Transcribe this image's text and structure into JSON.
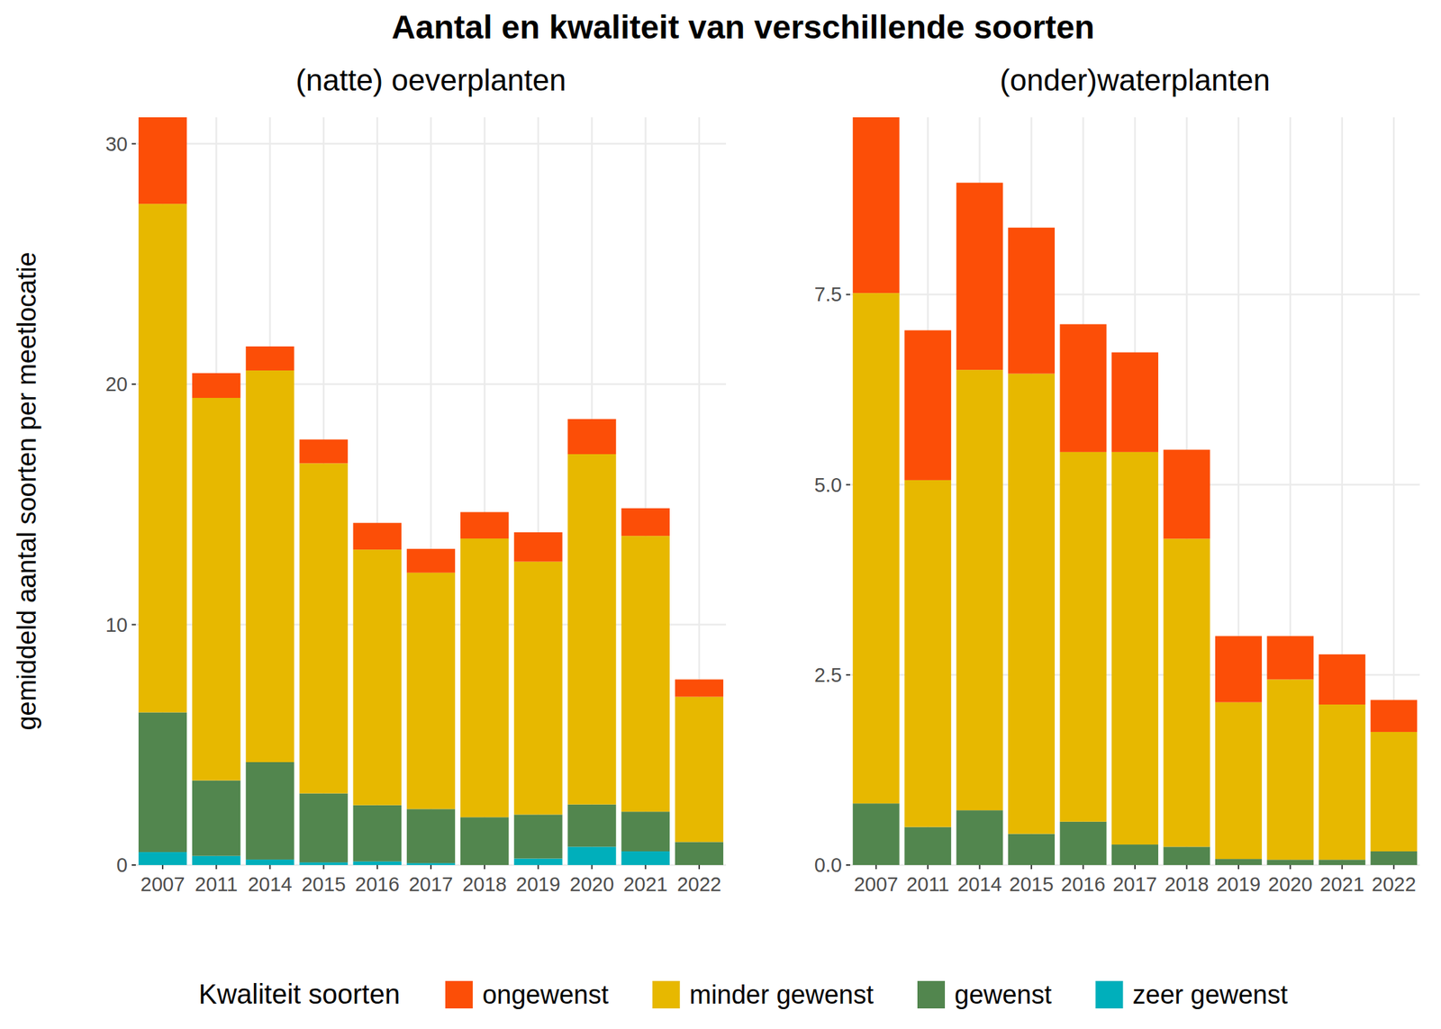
{
  "title": "Aantal en kwaliteit van verschillende soorten",
  "y_label": "gemiddeld aantal soorten per meetlocatie",
  "legend_title": "Kwaliteit soorten",
  "chart_data": [
    {
      "type": "bar",
      "stacked": true,
      "grid": true,
      "legend": "bottom",
      "title": "(natte) oeverplanten",
      "categories": [
        "2007",
        "2011",
        "2014",
        "2015",
        "2016",
        "2017",
        "2018",
        "2019",
        "2020",
        "2021",
        "2022"
      ],
      "ylim": [
        0,
        31.1
      ],
      "yticks": [
        0,
        10,
        20,
        30
      ],
      "series": [
        {
          "name": "zeer gewenst",
          "color": "#00AFBB",
          "values": [
            0.54,
            0.38,
            0.23,
            0.11,
            0.15,
            0.08,
            0,
            0.27,
            0.76,
            0.57,
            0
          ]
        },
        {
          "name": "gewenst",
          "color": "#52864E",
          "values": [
            5.81,
            3.14,
            4.05,
            2.87,
            2.34,
            2.25,
            1.99,
            1.83,
            1.76,
            1.65,
            0.96
          ]
        },
        {
          "name": "minder gewenst",
          "color": "#E7B800",
          "values": [
            21.15,
            15.91,
            16.29,
            13.73,
            10.63,
            9.83,
            11.59,
            10.52,
            14.57,
            11.47,
            6.04
          ]
        },
        {
          "name": "ongewenst",
          "color": "#FC4E07",
          "values": [
            3.6,
            1.03,
            1.0,
            0.99,
            1.11,
            0.99,
            1.1,
            1.22,
            1.46,
            1.15,
            0.72
          ]
        }
      ]
    },
    {
      "type": "bar",
      "stacked": true,
      "grid": true,
      "title": "(onder)waterplanten",
      "categories": [
        "2007",
        "2011",
        "2014",
        "2015",
        "2016",
        "2017",
        "2018",
        "2019",
        "2020",
        "2021",
        "2022"
      ],
      "ylim": [
        0,
        9.83
      ],
      "yticks": [
        {
          "value": 0,
          "label": "0.0"
        },
        2.5,
        {
          "value": 5,
          "label": "5.0"
        },
        7.5
      ],
      "series": [
        {
          "name": "gewenst",
          "color": "#52864E",
          "values": [
            0.81,
            0.5,
            0.72,
            0.41,
            0.57,
            0.27,
            0.24,
            0.08,
            0.07,
            0.07,
            0.18
          ]
        },
        {
          "name": "minder gewenst",
          "color": "#E7B800",
          "values": [
            6.71,
            4.56,
            5.79,
            6.05,
            4.86,
            5.16,
            4.05,
            2.06,
            2.37,
            2.04,
            1.57
          ]
        },
        {
          "name": "ongewenst",
          "color": "#FC4E07",
          "values": [
            2.31,
            1.97,
            2.46,
            1.92,
            1.68,
            1.31,
            1.17,
            0.87,
            0.57,
            0.66,
            0.42
          ]
        }
      ]
    }
  ]
}
